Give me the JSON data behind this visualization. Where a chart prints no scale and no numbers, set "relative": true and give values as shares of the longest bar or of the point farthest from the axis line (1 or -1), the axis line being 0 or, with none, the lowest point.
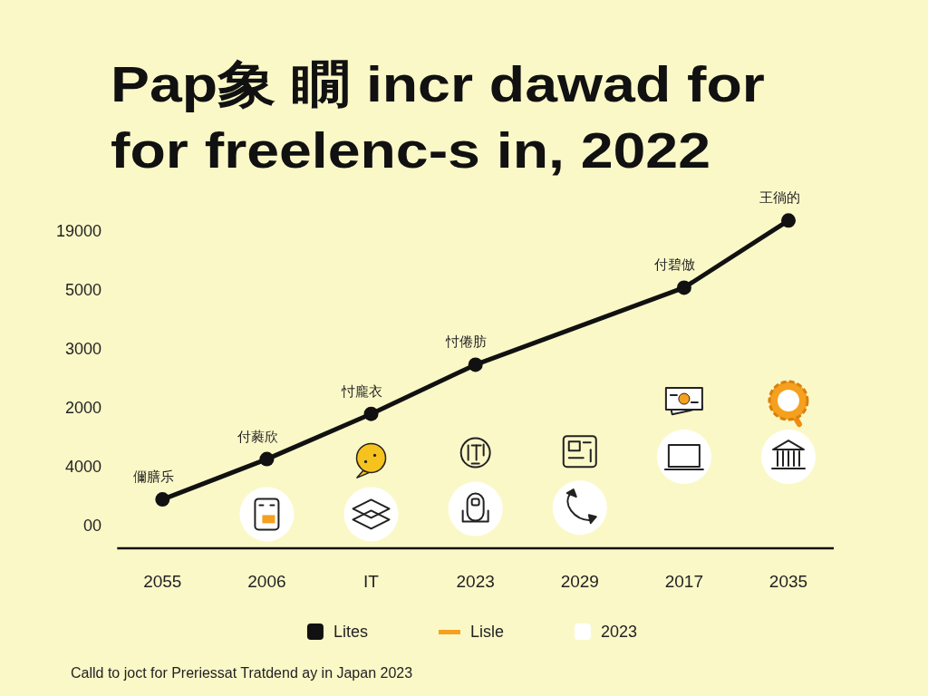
{
  "chart_data": {
    "type": "line",
    "title": "Pap象 瞯 incr dawad for\nfor freelenc-s in, 2022",
    "categories": [
      "2055",
      "2006",
      "IT",
      "2023",
      "2029",
      "2017",
      "2035"
    ],
    "relative": true,
    "series": [
      {
        "name": "Lites",
        "color": "#111111",
        "marker": "circle",
        "values": [
          0.149,
          0.272,
          0.41,
          0.56,
          null,
          0.795,
          1
        ]
      },
      {
        "name": "Lisle",
        "color": "#f5a01e",
        "values": [
          null,
          null,
          null,
          null,
          null,
          null,
          null
        ]
      },
      {
        "name": "2023",
        "type": "scatter",
        "color": "#ffffff",
        "marker": "circle",
        "values": [
          null,
          0.104,
          0.104,
          0.12,
          0.124,
          0.279,
          0.279
        ]
      }
    ],
    "legend": "bottom",
    "annotations": [
      {
        "text": "儞膳乐",
        "x": "2055",
        "y": 0.149
      },
      {
        "text": "付蕤欣",
        "x": "2006",
        "y": 0.272
      },
      {
        "text": "忖龐衣",
        "x": "IT",
        "y": 0.41
      },
      {
        "text": "忖倦肪",
        "x": "2023",
        "y": 0.56
      },
      {
        "text": "付碧倣",
        "x": "2017",
        "y": 0.795
      },
      {
        "text": "王徜的",
        "x": "2035",
        "y": 1
      },
      "19000",
      "5000",
      "3000",
      "2000",
      "4000",
      "00",
      "Calld to joct for Preriessat Tratdend ay in Japan 2023"
    ]
  }
}
